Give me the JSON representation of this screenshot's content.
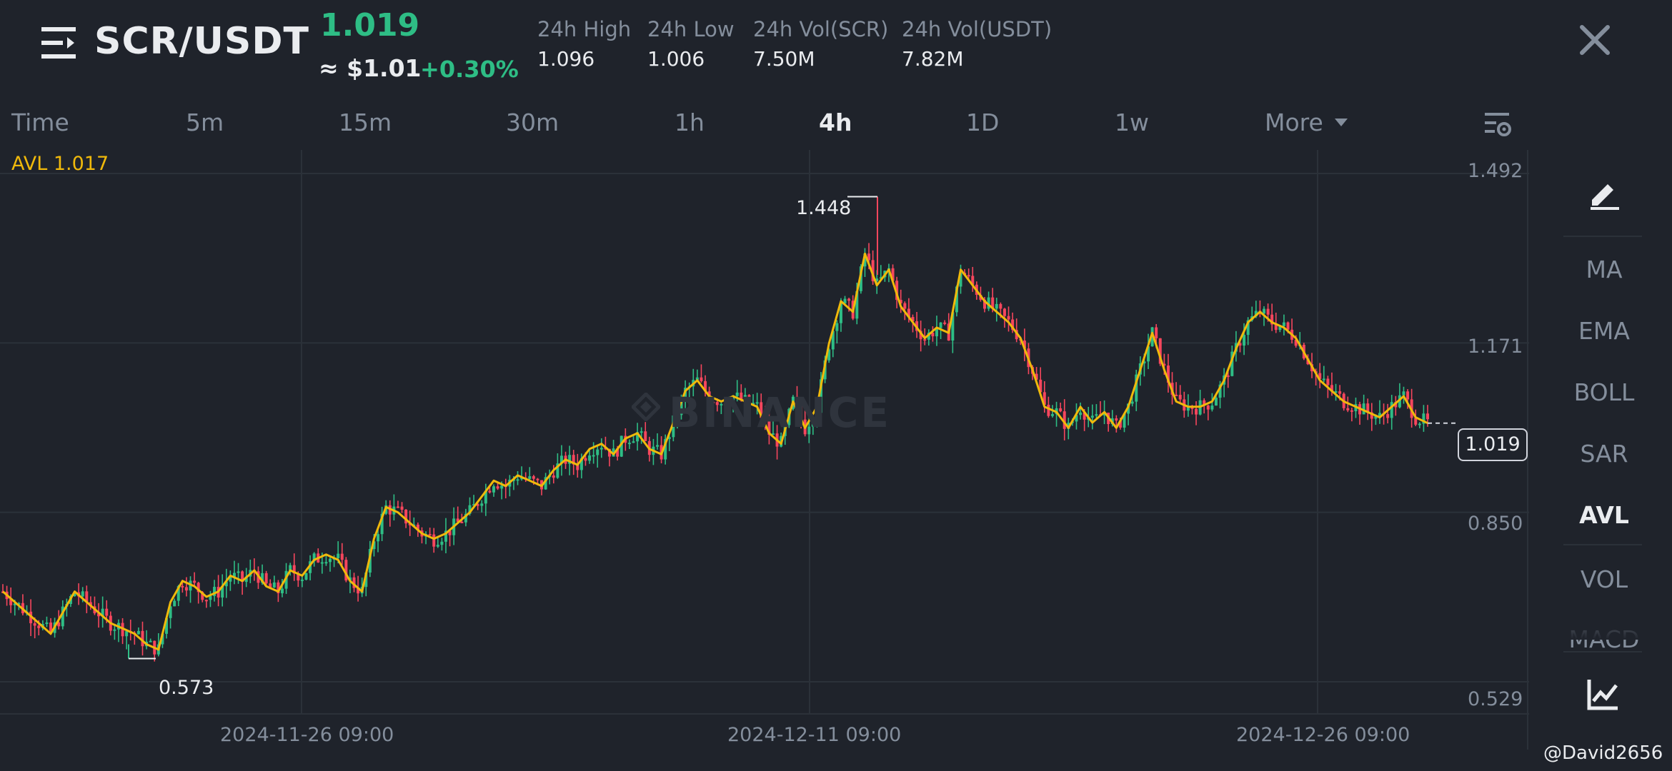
{
  "header": {
    "pair": "SCR/USDT",
    "last_price": "1.019",
    "usd_price": "≈ $1.01",
    "change": "+0.30%",
    "stats": [
      {
        "label": "24h High",
        "value": "1.096"
      },
      {
        "label": "24h Low",
        "value": "1.006"
      },
      {
        "label": "24h Vol(SCR)",
        "value": "7.50M"
      },
      {
        "label": "24h Vol(USDT)",
        "value": "7.82M"
      }
    ]
  },
  "tabs": [
    "Time",
    "5m",
    "15m",
    "30m",
    "1h",
    "4h",
    "1D",
    "1w"
  ],
  "active_tab": "4h",
  "more_label": "More",
  "chart": {
    "indicator_label": "AVL 1.017",
    "y_ticks": [
      "1.492",
      "1.171",
      "0.850",
      "0.529"
    ],
    "x_ticks": [
      "2024-11-26 09:00",
      "2024-12-11 09:00",
      "2024-12-26 09:00"
    ],
    "high_label": "1.448",
    "low_label": "0.573",
    "current_price": "1.019",
    "watermark": "BINANCE"
  },
  "chart_data": {
    "type": "line",
    "title": "",
    "series": [
      {
        "name": "AVL 1.017",
        "values": [
          0.7,
          0.68,
          0.66,
          0.64,
          0.62,
          0.66,
          0.7,
          0.68,
          0.66,
          0.64,
          0.63,
          0.62,
          0.6,
          0.59,
          0.68,
          0.72,
          0.71,
          0.69,
          0.7,
          0.73,
          0.72,
          0.74,
          0.71,
          0.7,
          0.74,
          0.73,
          0.76,
          0.77,
          0.76,
          0.72,
          0.7,
          0.8,
          0.86,
          0.85,
          0.83,
          0.81,
          0.8,
          0.81,
          0.83,
          0.85,
          0.88,
          0.91,
          0.9,
          0.92,
          0.91,
          0.9,
          0.93,
          0.95,
          0.94,
          0.97,
          0.98,
          0.96,
          0.99,
          1.0,
          0.97,
          0.96,
          1.02,
          1.08,
          1.1,
          1.07,
          1.06,
          1.07,
          1.06,
          1.05,
          1.0,
          0.98,
          1.06,
          1.01,
          1.05,
          1.17,
          1.25,
          1.23,
          1.34,
          1.28,
          1.31,
          1.24,
          1.21,
          1.18,
          1.2,
          1.19,
          1.31,
          1.28,
          1.25,
          1.23,
          1.21,
          1.18,
          1.12,
          1.05,
          1.04,
          1.01,
          1.05,
          1.02,
          1.04,
          1.01,
          1.05,
          1.12,
          1.19,
          1.12,
          1.06,
          1.05,
          1.05,
          1.06,
          1.1,
          1.16,
          1.21,
          1.23,
          1.21,
          1.2,
          1.18,
          1.14,
          1.1,
          1.08,
          1.06,
          1.05,
          1.04,
          1.03,
          1.05,
          1.07,
          1.03,
          1.019
        ]
      }
    ],
    "x_tick_labels": [
      "2024-11-26 09:00",
      "2024-12-11 09:00",
      "2024-12-26 09:00"
    ],
    "y_ticks": [
      1.492,
      1.171,
      0.85,
      0.529
    ],
    "ylim": [
      0.529,
      1.492
    ],
    "high": 1.448,
    "low": 0.573,
    "last": 1.019,
    "grid": true
  },
  "sidebar": {
    "items": [
      "MA",
      "EMA",
      "BOLL",
      "SAR",
      "AVL",
      "VOL",
      "MACD"
    ],
    "active": "AVL"
  },
  "credit": "@David2656",
  "colors": {
    "up": "#2ebd85",
    "down": "#f6465d",
    "avl_line": "#f0b90b",
    "background": "#1f232b"
  }
}
